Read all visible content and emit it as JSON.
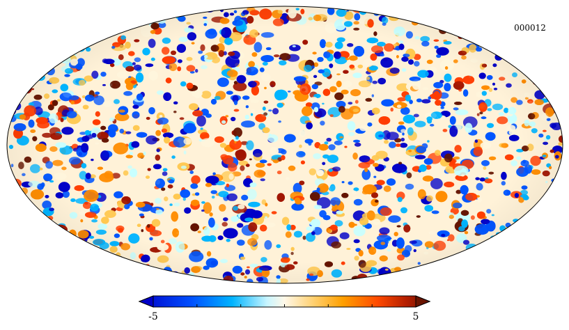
{
  "map": {
    "label": "000012",
    "projection": "mollweide",
    "colormap": [
      "#0000c8",
      "#0055ff",
      "#00b4ff",
      "#c8ffff",
      "#fff5dc",
      "#ffc850",
      "#ff8c00",
      "#ff3c00",
      "#a01400",
      "#641400"
    ],
    "background": "#ffffff"
  },
  "colorbar": {
    "min_label": "-5",
    "max_label": "5",
    "min": -5,
    "max": 5,
    "ticks": [
      -5,
      -3.333,
      -1.667,
      0,
      1.667,
      3.333,
      5
    ]
  }
}
